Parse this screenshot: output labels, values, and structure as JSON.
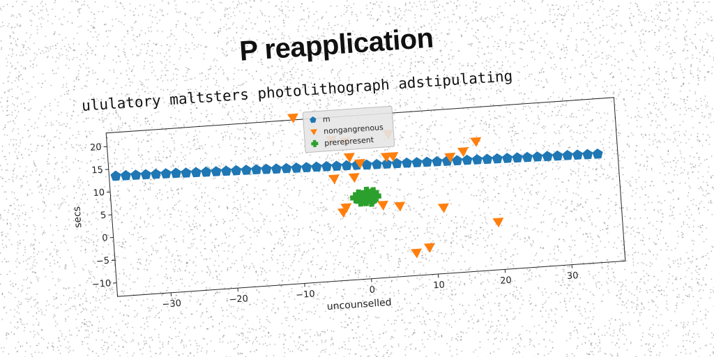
{
  "title": "P reapplication",
  "subtitle": "ululatory maltsters photolithograph adstipulating",
  "chart_data": {
    "type": "scatter",
    "xlabel": "uncounselled",
    "ylabel": "secs",
    "xlim": [
      -38,
      38
    ],
    "ylim": [
      -13,
      23
    ],
    "xticks": [
      -30,
      -20,
      -10,
      0,
      10,
      20,
      30
    ],
    "yticks": [
      -10,
      -5,
      0,
      5,
      10,
      15,
      20
    ],
    "grid": false,
    "legend_position": "top-center",
    "series": [
      {
        "name": "m",
        "marker": "pentagon",
        "color": "#1f77b4",
        "points": [
          [
            -37,
            13.4
          ],
          [
            -35.5,
            13.35
          ],
          [
            -34,
            13.3
          ],
          [
            -32.5,
            13.25
          ],
          [
            -31,
            13.2
          ],
          [
            -29.5,
            13.15
          ],
          [
            -28,
            13.1
          ],
          [
            -26.5,
            13.0
          ],
          [
            -25,
            12.95
          ],
          [
            -23.5,
            12.9
          ],
          [
            -22,
            12.85
          ],
          [
            -20.5,
            12.8
          ],
          [
            -19,
            12.75
          ],
          [
            -17.5,
            12.7
          ],
          [
            -16,
            12.65
          ],
          [
            -14.5,
            12.6
          ],
          [
            -13,
            12.5
          ],
          [
            -11.5,
            12.45
          ],
          [
            -10,
            12.4
          ],
          [
            -8.5,
            12.35
          ],
          [
            -7,
            12.3
          ],
          [
            -5.5,
            12.25
          ],
          [
            -4,
            12.2
          ],
          [
            -2.5,
            12.15
          ],
          [
            -1,
            12.1
          ],
          [
            0.5,
            12.0
          ],
          [
            2,
            11.95
          ],
          [
            3.5,
            11.9
          ],
          [
            5,
            11.85
          ],
          [
            6.5,
            11.8
          ],
          [
            8,
            11.75
          ],
          [
            9.5,
            11.7
          ],
          [
            11,
            11.65
          ],
          [
            12.5,
            11.6
          ],
          [
            14,
            11.55
          ],
          [
            15.5,
            11.5
          ],
          [
            17,
            11.45
          ],
          [
            18.5,
            11.4
          ],
          [
            20,
            11.35
          ],
          [
            21.5,
            11.3
          ],
          [
            23,
            11.25
          ],
          [
            24.5,
            11.2
          ],
          [
            26,
            11.15
          ],
          [
            27.5,
            11.1
          ],
          [
            29,
            11.05
          ],
          [
            30.5,
            11.0
          ],
          [
            32,
            10.95
          ],
          [
            33.5,
            10.9
          ],
          [
            35,
            10.85
          ]
        ]
      },
      {
        "name": "nongangrenous",
        "marker": "triangle_down",
        "color": "#ff7f0e",
        "points": [
          [
            -10,
            23.5
          ],
          [
            -4.5,
            18
          ],
          [
            -2.5,
            17.5
          ],
          [
            4,
            18.5
          ],
          [
            -2,
            14
          ],
          [
            -0.5,
            12.5
          ],
          [
            3.5,
            13.5
          ],
          [
            4.5,
            13.5
          ],
          [
            13,
            12.5
          ],
          [
            15,
            13.5
          ],
          [
            17,
            15.5
          ],
          [
            -4.5,
            9.5
          ],
          [
            -1.5,
            9.5
          ],
          [
            -3.5,
            2
          ],
          [
            -3,
            3
          ],
          [
            2.5,
            3
          ],
          [
            5,
            2.5
          ],
          [
            11.5,
            1.5
          ],
          [
            19.5,
            -2.5
          ],
          [
            7,
            -8
          ],
          [
            9,
            -7
          ]
        ]
      },
      {
        "name": "prerepresent",
        "marker": "plus_filled",
        "color": "#2ca02c",
        "points": [
          [
            -1,
            5.5
          ],
          [
            -0.5,
            4.5
          ],
          [
            0,
            5
          ],
          [
            0.5,
            5.5
          ],
          [
            1,
            4.5
          ],
          [
            1.5,
            5
          ],
          [
            -1.5,
            5
          ],
          [
            0.2,
            6
          ],
          [
            0.8,
            4
          ],
          [
            -0.8,
            4.2
          ],
          [
            1.2,
            5.8
          ],
          [
            0,
            4.2
          ]
        ]
      }
    ]
  }
}
